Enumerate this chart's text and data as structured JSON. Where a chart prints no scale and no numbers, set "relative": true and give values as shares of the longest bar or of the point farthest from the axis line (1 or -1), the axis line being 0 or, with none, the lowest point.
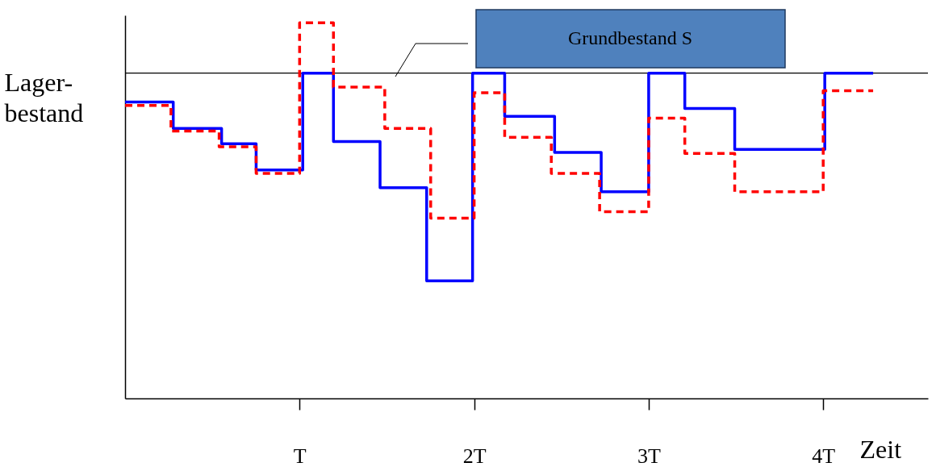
{
  "chart_data": {
    "type": "step",
    "relative": true,
    "ylabel": "Lager-\nbestand",
    "xlabel": "Zeit",
    "xlim": [
      0,
      4.6
    ],
    "xticks": [
      {
        "value": 1,
        "label": "T"
      },
      {
        "value": 2,
        "label": "2T"
      },
      {
        "value": 3,
        "label": "3T"
      },
      {
        "value": 4,
        "label": "4T"
      }
    ],
    "grid": false,
    "marker": "none",
    "series": [
      {
        "color": "#0000ff",
        "line_style": "solid",
        "x": [
          0,
          0.276,
          0.553,
          0.751,
          1.018,
          1.194,
          1.461,
          1.728,
          1.991,
          2.175,
          2.461,
          2.728,
          3.0,
          3.207,
          3.493,
          4.009,
          4.286
        ],
        "values": [
          0.789,
          0.719,
          0.678,
          0.608,
          0.866,
          0.684,
          0.561,
          0.313,
          0.866,
          0.751,
          0.655,
          0.55,
          0.866,
          0.772,
          0.663,
          0.866,
          0.866
        ]
      },
      {
        "color": "#ff0000",
        "line_style": "dashed",
        "x": [
          0,
          0.263,
          0.539,
          0.751,
          1.0,
          1.194,
          1.488,
          1.751,
          2.0,
          2.175,
          2.442,
          2.719,
          3.0,
          3.207,
          3.493,
          4.0,
          4.286
        ],
        "values": [
          0.78,
          0.712,
          0.67,
          0.599,
          1.0,
          0.829,
          0.719,
          0.48,
          0.814,
          0.695,
          0.599,
          0.497,
          0.746,
          0.652,
          0.55,
          0.819,
          0.819
        ]
      }
    ],
    "ref_lines": [
      {
        "axis": "y",
        "value": 0.866,
        "label": "Grundbestand S",
        "color": "#000000"
      }
    ]
  }
}
